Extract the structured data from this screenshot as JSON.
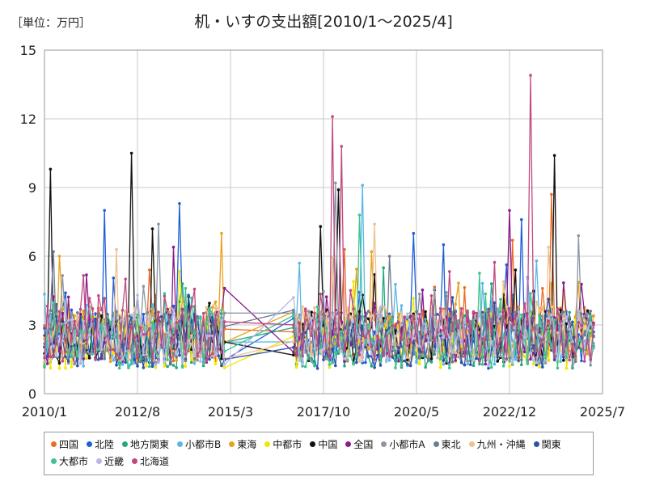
{
  "header": {
    "unit": "［単位：万円］",
    "title": "机・いすの支出額[2010/1～2025/4]"
  },
  "chart_data": {
    "type": "line",
    "title": "机・いすの支出額[2010/1～2025/4]",
    "xlabel": "",
    "ylabel": "",
    "xlim": [
      "2010-01",
      "2025-07"
    ],
    "ylim": [
      0,
      15
    ],
    "yticks": [
      0,
      3,
      6,
      9,
      12,
      15
    ],
    "xticks": [
      {
        "date": "2010-01",
        "label": "2010/1"
      },
      {
        "date": "2012-08",
        "label": "2012/8"
      },
      {
        "date": "2015-03",
        "label": "2015/3"
      },
      {
        "date": "2017-10",
        "label": "2017/10"
      },
      {
        "date": "2020-05",
        "label": "2020/5"
      },
      {
        "date": "2022-12",
        "label": "2022/12"
      },
      {
        "date": "2025-07",
        "label": "2025/7"
      }
    ],
    "grid": true,
    "legend_position": "bottom",
    "gap": [
      "2015-01",
      "2016-12"
    ],
    "series": [
      {
        "name": "四国",
        "color": "#ec6a26",
        "base": 2.6,
        "peaks": [
          [
            "2024-02",
            8.7
          ],
          [
            "2023-01",
            6.7
          ],
          [
            "2018-05",
            6.3
          ],
          [
            "2012-12",
            5.4
          ]
        ]
      },
      {
        "name": "北陸",
        "color": "#1f5fd6",
        "base": 2.5,
        "peaks": [
          [
            "2011-09",
            8.0
          ],
          [
            "2013-10",
            8.3
          ],
          [
            "2023-04",
            7.6
          ],
          [
            "2020-04",
            7.0
          ],
          [
            "2021-02",
            6.5
          ]
        ]
      },
      {
        "name": "地方関東",
        "color": "#22a77f",
        "base": 2.3,
        "peaks": [
          [
            "2013-11",
            4.8
          ],
          [
            "2019-06",
            5.5
          ],
          [
            "2022-06",
            4.8
          ]
        ]
      },
      {
        "name": "小都市B",
        "color": "#5ab8e8",
        "base": 2.4,
        "peaks": [
          [
            "2018-11",
            9.1
          ],
          [
            "2017-02",
            5.7
          ],
          [
            "2023-09",
            5.8
          ]
        ]
      },
      {
        "name": "東海",
        "color": "#e8a21c",
        "base": 2.6,
        "peaks": [
          [
            "2014-12",
            7.0
          ],
          [
            "2010-06",
            6.0
          ],
          [
            "2019-02",
            6.2
          ]
        ]
      },
      {
        "name": "中都市",
        "color": "#f3e600",
        "base": 2.3,
        "peaks": [
          [
            "2018-08",
            4.9
          ],
          [
            "2024-06",
            4.5
          ]
        ]
      },
      {
        "name": "中国",
        "color": "#111111",
        "base": 2.5,
        "peaks": [
          [
            "2010-03",
            9.8
          ],
          [
            "2012-06",
            10.5
          ],
          [
            "2018-03",
            8.9
          ],
          [
            "2024-03",
            10.4
          ],
          [
            "2013-01",
            7.2
          ],
          [
            "2017-09",
            7.3
          ]
        ]
      },
      {
        "name": "全国",
        "color": "#8c1a8c",
        "base": 2.4,
        "peaks": [
          [
            "2013-08",
            6.4
          ],
          [
            "2022-12",
            8.0
          ]
        ]
      },
      {
        "name": "小都市A",
        "color": "#8a97a5",
        "base": 2.4,
        "peaks": [
          [
            "2018-02",
            9.2
          ],
          [
            "2013-03",
            7.4
          ],
          [
            "2024-11",
            6.9
          ]
        ]
      },
      {
        "name": "東北",
        "color": "#6b7d91",
        "base": 2.5,
        "peaks": [
          [
            "2010-04",
            6.2
          ],
          [
            "2019-08",
            6.0
          ]
        ]
      },
      {
        "name": "九州・沖縄",
        "color": "#f0c090",
        "base": 2.6,
        "peaks": [
          [
            "2019-03",
            7.4
          ],
          [
            "2024-01",
            6.4
          ],
          [
            "2012-01",
            6.3
          ]
        ]
      },
      {
        "name": "関東",
        "color": "#2b52a8",
        "base": 2.3,
        "peaks": [
          [
            "2014-01",
            4.3
          ],
          [
            "2021-05",
            4.2
          ]
        ]
      },
      {
        "name": "大都市",
        "color": "#3cc48f",
        "base": 2.3,
        "peaks": [
          [
            "2013-12",
            4.6
          ],
          [
            "2018-10",
            7.8
          ]
        ]
      },
      {
        "name": "近畿",
        "color": "#b8b8e8",
        "base": 2.4,
        "peaks": [
          [
            "2016-12",
            4.2
          ],
          [
            "2023-06",
            5.0
          ]
        ]
      },
      {
        "name": "北海道",
        "color": "#c04a80",
        "base": 2.6,
        "peaks": [
          [
            "2018-01",
            12.1
          ],
          [
            "2018-04",
            10.8
          ],
          [
            "2023-07",
            13.9
          ],
          [
            "2012-04",
            5.0
          ]
        ]
      }
    ]
  }
}
